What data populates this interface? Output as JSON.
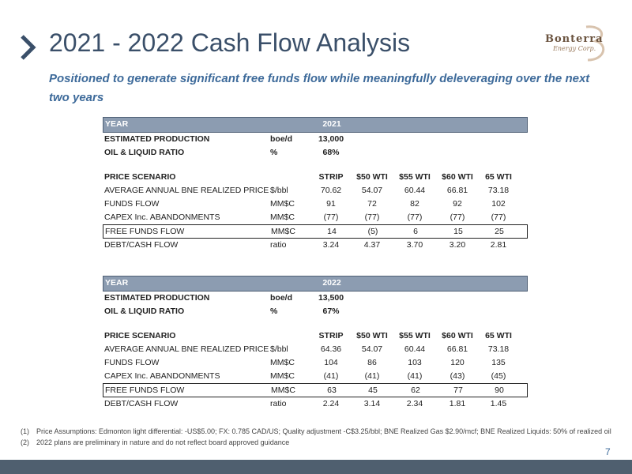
{
  "title": "2021 - 2022 Cash Flow Analysis",
  "subtitle": "Positioned to generate significant free funds flow while meaningfully deleveraging over the next two years",
  "logo": {
    "name": "Bonterra",
    "sub": "Energy Corp."
  },
  "tables": [
    {
      "year_label": "YEAR",
      "year": "2021",
      "production": {
        "label": "ESTIMATED PRODUCTION",
        "unit": "boe/d",
        "value": "13,000"
      },
      "ratio": {
        "label": "OIL & LIQUID RATIO",
        "unit": "%",
        "value": "68%"
      },
      "header": [
        "PRICE SCENARIO",
        "STRIP",
        "$50 WTI",
        "$55 WTI",
        "$60 WTI",
        "65 WTI"
      ],
      "rows": [
        {
          "label": "AVERAGE ANNUAL BNE REALIZED PRICE",
          "unit": "$/bbl",
          "values": [
            "70.62",
            "54.07",
            "60.44",
            "66.81",
            "73.18"
          ]
        },
        {
          "label": "FUNDS FLOW",
          "unit": "MM$C",
          "values": [
            "91",
            "72",
            "82",
            "92",
            "102"
          ]
        },
        {
          "label": "CAPEX Inc. ABANDONMENTS",
          "unit": "MM$C",
          "values": [
            "(77)",
            "(77)",
            "(77)",
            "(77)",
            "(77)"
          ]
        },
        {
          "label": "FREE FUNDS FLOW",
          "unit": "MM$C",
          "values": [
            "14",
            "(5)",
            "6",
            "15",
            "25"
          ]
        },
        {
          "label": "DEBT/CASH FLOW",
          "unit": "ratio",
          "values": [
            "3.24",
            "4.37",
            "3.70",
            "3.20",
            "2.81"
          ]
        }
      ]
    },
    {
      "year_label": "YEAR",
      "year": "2022",
      "production": {
        "label": "ESTIMATED PRODUCTION",
        "unit": "boe/d",
        "value": "13,500"
      },
      "ratio": {
        "label": "OIL & LIQUID RATIO",
        "unit": "%",
        "value": "67%"
      },
      "header": [
        "PRICE SCENARIO",
        "STRIP",
        "$50 WTI",
        "$55 WTI",
        "$60 WTI",
        "65 WTI"
      ],
      "rows": [
        {
          "label": "AVERAGE ANNUAL BNE REALIZED PRICE",
          "unit": "$/bbl",
          "values": [
            "64.36",
            "54.07",
            "60.44",
            "66.81",
            "73.18"
          ]
        },
        {
          "label": "FUNDS FLOW",
          "unit": "MM$C",
          "values": [
            "104",
            "86",
            "103",
            "120",
            "135"
          ]
        },
        {
          "label": "CAPEX Inc. ABANDONMENTS",
          "unit": "MM$C",
          "values": [
            "(41)",
            "(41)",
            "(41)",
            "(43)",
            "(45)"
          ]
        },
        {
          "label": "FREE FUNDS FLOW",
          "unit": "MM$C",
          "values": [
            "63",
            "45",
            "62",
            "77",
            "90"
          ]
        },
        {
          "label": "DEBT/CASH FLOW",
          "unit": "ratio",
          "values": [
            "2.24",
            "3.14",
            "2.34",
            "1.81",
            "1.45"
          ]
        }
      ]
    }
  ],
  "footnotes": [
    {
      "num": "(1)",
      "text": "Price Assumptions: Edmonton light differential: -US$5.00; FX: 0.785 CAD/US; Quality adjustment -C$3.25/bbl; BNE Realized Gas $2.90/mcf; BNE Realized Liquids: 50% of realized oil"
    },
    {
      "num": "(2)",
      "text": "2022 plans are preliminary in nature and do not reflect board approved guidance"
    }
  ],
  "page_number": "7",
  "colors": {
    "title": "#3a4f69",
    "subtitle": "#3d6a9a",
    "year_bar": "#8c9cb1",
    "footer": "#4f5f6f"
  }
}
